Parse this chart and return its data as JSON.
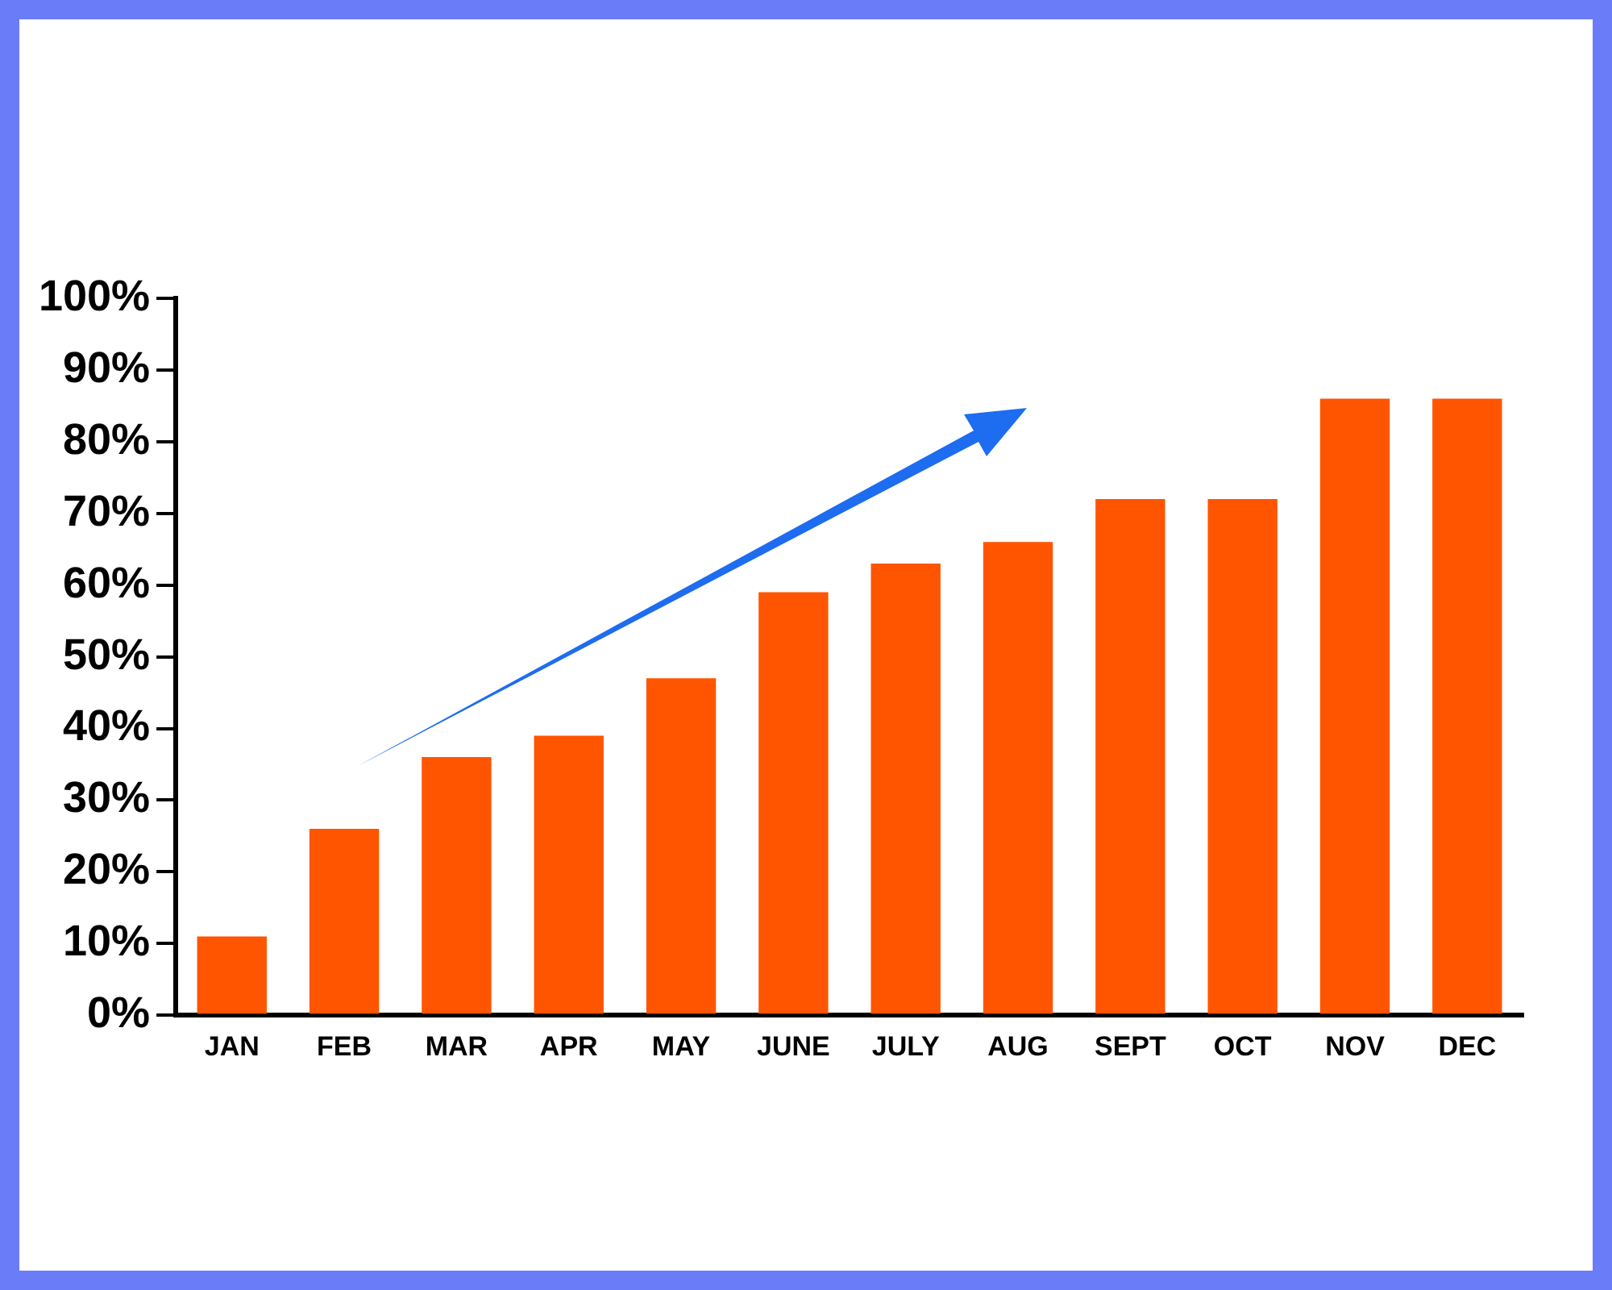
{
  "chart_data": {
    "type": "bar",
    "categories": [
      "JAN",
      "FEB",
      "MAR",
      "APR",
      "MAY",
      "JUNE",
      "JULY",
      "AUG",
      "SEPT",
      "OCT",
      "NOV",
      "DEC"
    ],
    "values": [
      11,
      26,
      36,
      39,
      47,
      59,
      63,
      66,
      72,
      72,
      86,
      86
    ],
    "color": "#ff5500",
    "ylim": [
      0,
      100
    ],
    "yticks": [
      {
        "value": 0,
        "label": "0%"
      },
      {
        "value": 10,
        "label": "10%"
      },
      {
        "value": 20,
        "label": "20%"
      },
      {
        "value": 30,
        "label": "30%"
      },
      {
        "value": 40,
        "label": "40%"
      },
      {
        "value": 50,
        "label": "50%"
      },
      {
        "value": 60,
        "label": "60%"
      },
      {
        "value": 70,
        "label": "70%"
      },
      {
        "value": 80,
        "label": "80%"
      },
      {
        "value": 90,
        "label": "90%"
      },
      {
        "value": 100,
        "label": "100%"
      }
    ],
    "grid": false,
    "legend": false
  }
}
